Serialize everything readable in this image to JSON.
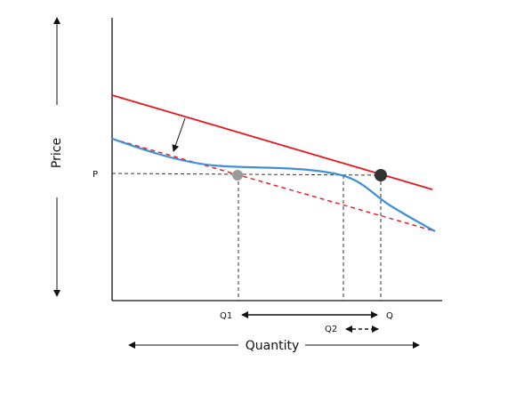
{
  "diagram": {
    "y_axis_label": "Price",
    "x_axis_label": "Quantity",
    "price_label": "P",
    "q1_label": "Q1",
    "q_label": "Q",
    "q2_label": "Q2",
    "colors": {
      "red_line": "#e8161b",
      "blue_curve": "#3f8fd8",
      "red_dashed": "#e8161b",
      "axis": "#111111",
      "guide": "#333333",
      "gray_point": "#9a9a9a",
      "dark_point": "#333333"
    }
  }
}
